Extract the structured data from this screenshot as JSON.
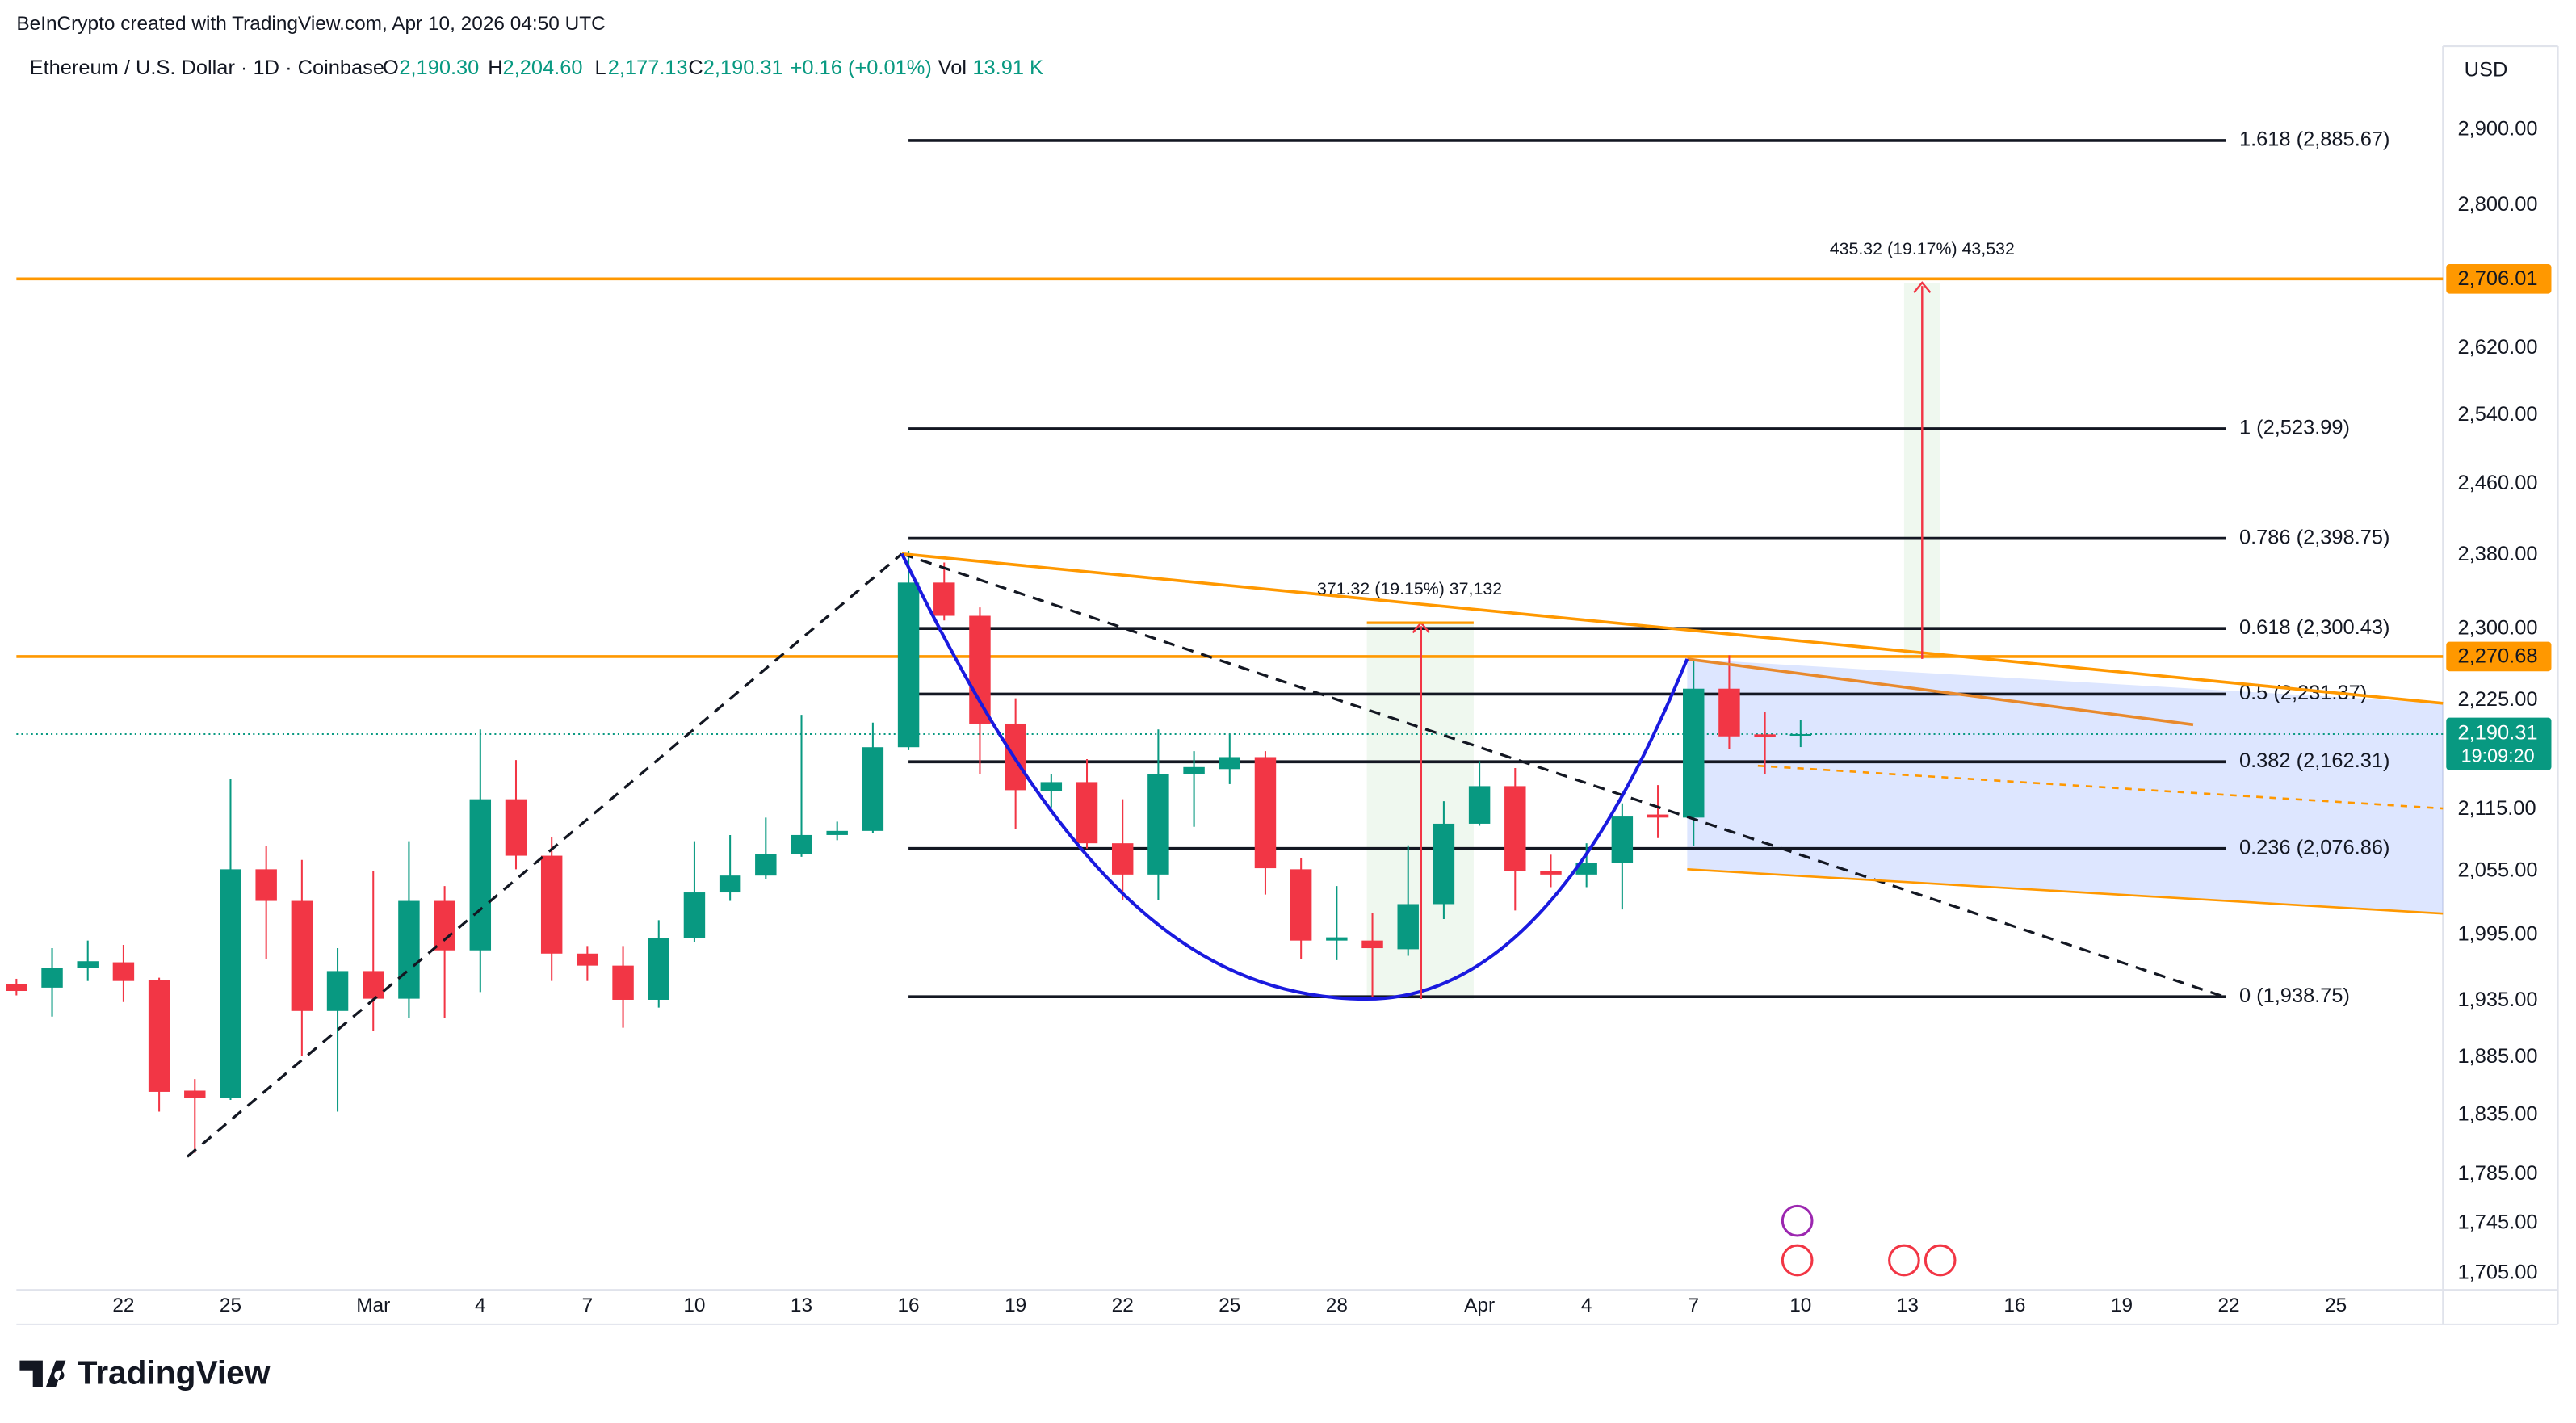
{
  "chart_data": {
    "type": "candlestick",
    "subtitle": "BeInCrypto created with TradingView.com, Apr 10, 2026 04:50 UTC",
    "title": "Ethereum / U.S. Dollar · 1D · Coinbase",
    "ohlc": [
      {
        "key": "O",
        "value": "2,190.30"
      },
      {
        "key": "H",
        "value": "2,204.60"
      },
      {
        "key": "L",
        "value": "2,177.13"
      },
      {
        "key": "C",
        "value": "2,190.31"
      }
    ],
    "change": "+0.16 (+0.01%)",
    "volume_key": "Vol",
    "volume": "13.91 K",
    "currency": "USD",
    "brand": "TradingView",
    "log_scale": true,
    "grid": false,
    "up_color": "#089981",
    "down_color": "#f23645",
    "categories": [
      null,
      null,
      null,
      "22",
      null,
      null,
      "25",
      null,
      null,
      null,
      "Mar",
      null,
      null,
      "4",
      null,
      null,
      "7",
      null,
      null,
      "10",
      null,
      null,
      "13",
      null,
      null,
      "16",
      null,
      null,
      "19",
      null,
      null,
      "22",
      null,
      null,
      "25",
      null,
      null,
      "28",
      null,
      null,
      null,
      "Apr",
      null,
      null,
      "4",
      null,
      null,
      "7",
      null,
      null,
      "10",
      null,
      null,
      "13",
      null,
      null,
      "16",
      null,
      null,
      "19",
      null,
      null,
      "22",
      null,
      null,
      "25",
      null,
      null,
      null
    ],
    "open": [
      1950,
      1947,
      1965,
      1970,
      1954,
      1856,
      1850,
      2057,
      2027,
      1926,
      1962,
      1937,
      2027,
      1981,
      2125,
      2070,
      1978,
      1967,
      1936,
      1992,
      2035,
      2051,
      2072,
      2090,
      2094,
      2177,
      2350,
      2314,
      2201,
      2133,
      2142,
      2082,
      2052,
      2150,
      2155,
      2167,
      2057,
      1990,
      1990,
      1982,
      2024,
      2101,
      2138,
      2055,
      2052,
      2063,
      2110,
      2107,
      2237,
      2190,
      2190.3,
      null,
      null,
      null,
      null,
      null,
      null,
      null,
      null,
      null,
      null,
      null,
      null,
      null,
      null,
      null,
      null,
      null,
      null
    ],
    "high": [
      1955,
      1983,
      1990,
      1986,
      1956,
      1866,
      2145,
      2079,
      2066,
      1983,
      2055,
      2084,
      2041,
      2195,
      2164,
      2088,
      1985,
      1985,
      2009,
      2084,
      2090,
      2107,
      2210,
      2103,
      2202,
      2385,
      2372,
      2323,
      2227,
      2150,
      2165,
      2125,
      2195,
      2173,
      2190,
      2173,
      2068,
      2041,
      2016,
      2080,
      2123,
      2163,
      2156,
      2071,
      2082,
      2121,
      2139,
      2268,
      2272,
      2213,
      2204.6,
      null,
      null,
      null,
      null,
      null,
      null,
      null,
      null,
      null,
      null,
      null,
      null,
      null,
      null,
      null,
      null,
      null,
      null
    ],
    "low": [
      1940,
      1921,
      1953,
      1934,
      1838,
      1803,
      1848,
      1973,
      1886,
      1838,
      1908,
      1920,
      1920,
      1943,
      2057,
      1953,
      1953,
      1911,
      1929,
      1989,
      2027,
      2048,
      2069,
      2085,
      2092,
      2174,
      2309,
      2150,
      2096,
      2117,
      2077,
      2028,
      2028,
      2098,
      2140,
      2033,
      1973,
      1972,
      1938,
      1976,
      2010,
      2099,
      2018,
      2040,
      2040,
      2019,
      2087,
      2079,
      2175,
      2150,
      2177.13,
      null,
      null,
      null,
      null,
      null,
      null,
      null,
      null,
      null,
      null,
      null,
      null,
      null,
      null,
      null,
      null,
      null,
      null
    ],
    "close": [
      1944,
      1965,
      1971,
      1953,
      1855,
      1850,
      2057,
      2027,
      1926,
      1962,
      1937,
      2027,
      1981,
      2125,
      2070,
      1978,
      1967,
      1936,
      1992,
      2035,
      2051,
      2072,
      2090,
      2094,
      2177,
      2350,
      2314,
      2201,
      2134,
      2142,
      2082,
      2052,
      2150,
      2157,
      2167,
      2058,
      1990,
      1993,
      1983,
      2024,
      2101,
      2138,
      2055,
      2052,
      2063,
      2108,
      2107,
      2237,
      2188,
      2187,
      2190.31,
      null,
      null,
      null,
      null,
      null,
      null,
      null,
      null,
      null,
      null,
      null,
      null,
      null,
      null,
      null,
      null,
      null,
      null
    ],
    "ylim": [
      1692,
      3015
    ],
    "yticks": [
      {
        "value": 2900,
        "label": "2,900.00"
      },
      {
        "value": 2800,
        "label": "2,800.00"
      },
      {
        "value": 2620,
        "label": "2,620.00"
      },
      {
        "value": 2540,
        "label": "2,540.00"
      },
      {
        "value": 2460,
        "label": "2,460.00"
      },
      {
        "value": 2380,
        "label": "2,380.00"
      },
      {
        "value": 2300,
        "label": "2,300.00"
      },
      {
        "value": 2225,
        "label": "2,225.00"
      },
      {
        "value": 2115,
        "label": "2,115.00"
      },
      {
        "value": 2055,
        "label": "2,055.00"
      },
      {
        "value": 1995,
        "label": "1,995.00"
      },
      {
        "value": 1935,
        "label": "1,935.00"
      },
      {
        "value": 1885,
        "label": "1,885.00"
      },
      {
        "value": 1835,
        "label": "1,835.00"
      },
      {
        "value": 1785,
        "label": "1,785.00"
      },
      {
        "value": 1745,
        "label": "1,745.00"
      },
      {
        "value": 1705,
        "label": "1,705.00"
      }
    ],
    "levels_color": "#ff9800",
    "levels": [
      {
        "value": 2706.01,
        "label": "2,706.01"
      },
      {
        "value": 2270.68,
        "label": "2,270.68"
      }
    ],
    "fib_levels": [
      {
        "value": 2885.67,
        "label": "1.618 (2,885.67)"
      },
      {
        "value": 2523.99,
        "label": "1 (2,523.99)"
      },
      {
        "value": 2398.75,
        "label": "0.786 (2,398.75)"
      },
      {
        "value": 2300.43,
        "label": "0.618 (2,300.43)"
      },
      {
        "value": 2231.37,
        "label": "0.5 (2,231.37)"
      },
      {
        "value": 2162.31,
        "label": "0.382 (2,162.31)"
      },
      {
        "value": 2076.86,
        "label": "0.236 (2,076.86)"
      },
      {
        "value": 1938.75,
        "label": "0 (1,938.75)"
      }
    ],
    "last_price": {
      "value": 2190.31,
      "label": "2,190.31",
      "countdown": "19:09:20"
    },
    "measurements": [
      {
        "label": "371.32 (19.15%) 37,132"
      },
      {
        "label": "435.32 (19.17%) 43,532"
      }
    ]
  }
}
